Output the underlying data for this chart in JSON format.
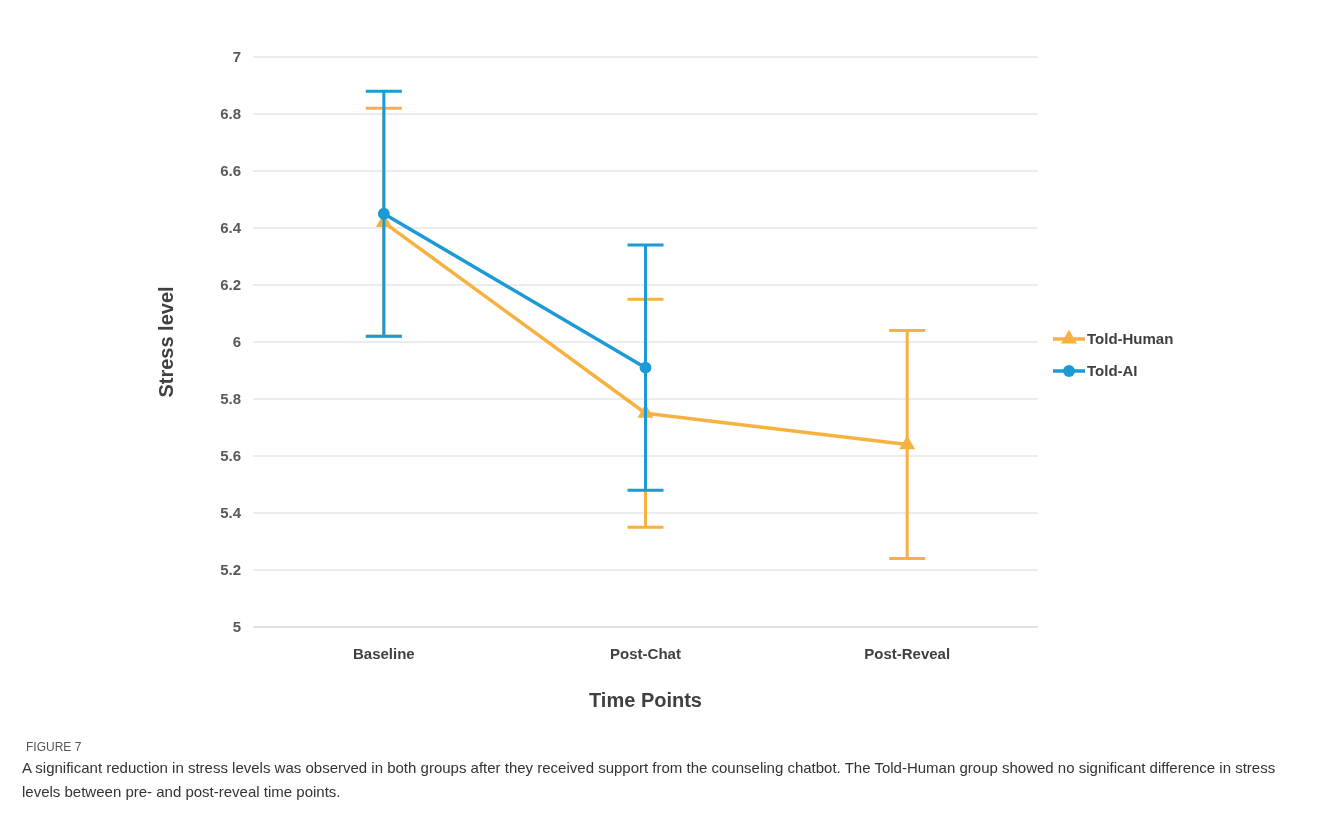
{
  "chart_data": {
    "type": "line",
    "xlabel": "Time Points",
    "ylabel": "Stress level",
    "categories": [
      "Baseline",
      "Post-Chat",
      "Post-Reveal"
    ],
    "series": [
      {
        "name": "Told-Human",
        "color": "#f7b13f",
        "marker": "triangle",
        "values": [
          6.42,
          5.75,
          5.64
        ],
        "errors": [
          [
            6.02,
            6.82
          ],
          [
            5.35,
            6.15
          ],
          [
            5.24,
            6.04
          ]
        ]
      },
      {
        "name": "Told-AI",
        "color": "#1c9ad6",
        "marker": "circle",
        "values": [
          6.45,
          5.91,
          null
        ],
        "errors": [
          [
            6.02,
            6.88
          ],
          [
            5.48,
            6.34
          ],
          null
        ]
      }
    ],
    "ylim": [
      5,
      7
    ],
    "yticks": [
      5,
      5.2,
      5.4,
      5.6,
      5.8,
      6,
      6.2,
      6.4,
      6.6,
      6.8,
      7
    ],
    "grid": "y",
    "legend": "right",
    "annotations": [
      "FIGURE 7",
      "A significant reduction in stress levels was observed in both groups after they received support from the counseling chatbot. The Told-Human group showed no significant difference in stress levels between pre- and post-reveal time points."
    ]
  }
}
